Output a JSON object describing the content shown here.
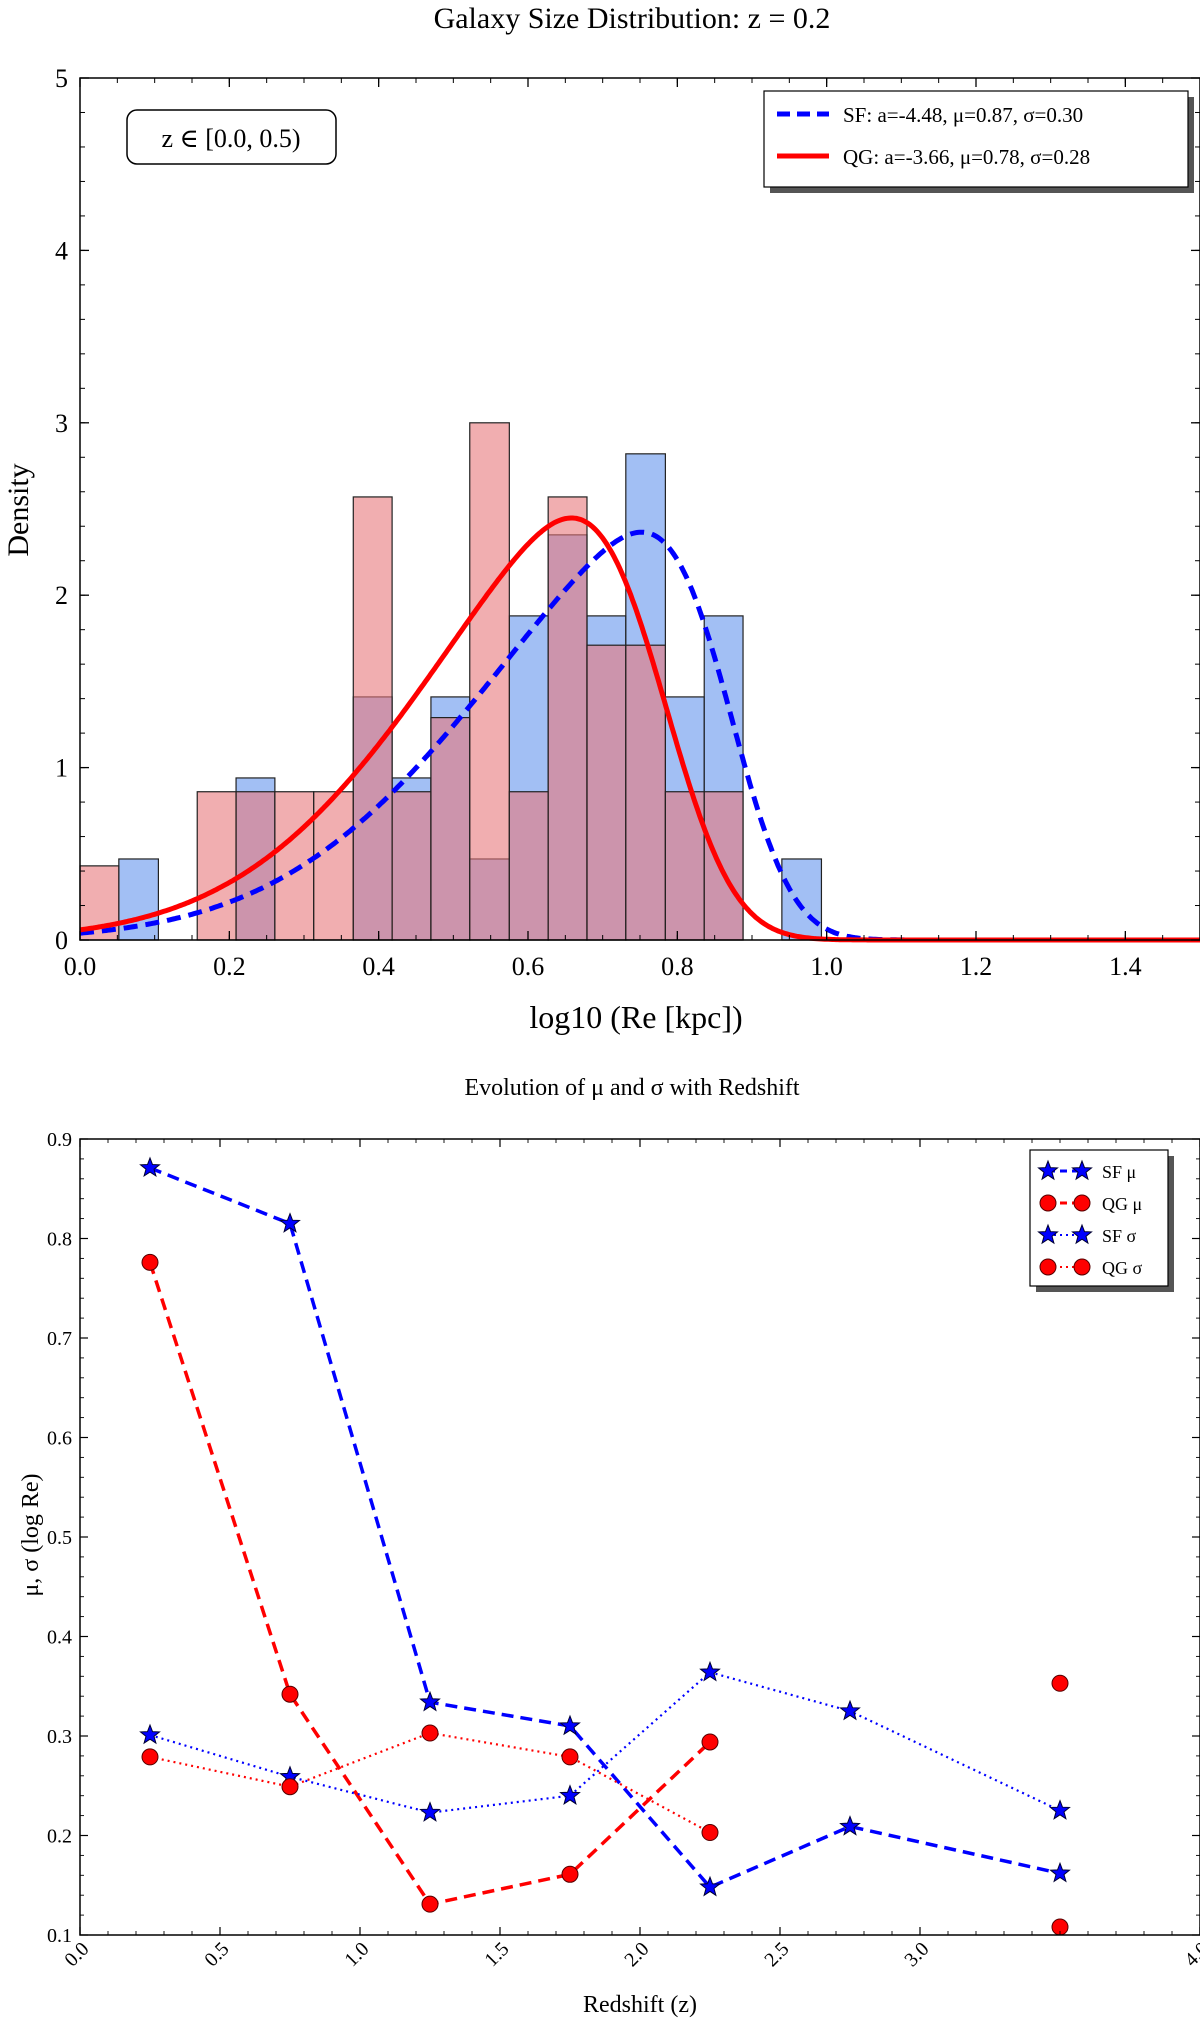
{
  "chart_data": [
    {
      "type": "bar",
      "subtype": "histogram-with-fits",
      "title": "Galaxy Size Distribution: z = 0.2",
      "xlabel": "log10 (Re [kpc])",
      "ylabel": "Density",
      "xlim": [
        0.0,
        1.5
      ],
      "ylim": [
        0,
        5
      ],
      "xticks": [
        "0.0",
        "0.2",
        "0.4",
        "0.6",
        "0.8",
        "1.0",
        "1.2",
        "1.4"
      ],
      "yticks": [
        "0",
        "1",
        "2",
        "3",
        "4",
        "5"
      ],
      "annotation": "z ∈ [0.0, 0.5)",
      "legend_position": "top-right",
      "histograms": [
        {
          "name": "SF histogram",
          "color": "#6495ED",
          "bins": [
            {
              "x0": 0.052,
              "x1": 0.105,
              "value": 0.47
            },
            {
              "x0": 0.209,
              "x1": 0.261,
              "value": 0.94
            },
            {
              "x0": 0.366,
              "x1": 0.418,
              "value": 1.41
            },
            {
              "x0": 0.418,
              "x1": 0.47,
              "value": 0.94
            },
            {
              "x0": 0.47,
              "x1": 0.522,
              "value": 1.41
            },
            {
              "x0": 0.522,
              "x1": 0.575,
              "value": 0.47
            },
            {
              "x0": 0.575,
              "x1": 0.627,
              "value": 1.88
            },
            {
              "x0": 0.627,
              "x1": 0.679,
              "value": 2.35
            },
            {
              "x0": 0.679,
              "x1": 0.731,
              "value": 1.88
            },
            {
              "x0": 0.731,
              "x1": 0.784,
              "value": 2.82
            },
            {
              "x0": 0.784,
              "x1": 0.836,
              "value": 1.41
            },
            {
              "x0": 0.836,
              "x1": 0.888,
              "value": 1.88
            },
            {
              "x0": 0.94,
              "x1": 0.993,
              "value": 0.47
            }
          ]
        },
        {
          "name": "QG histogram",
          "color": "#E8787C",
          "bins": [
            {
              "x0": 0.0,
              "x1": 0.052,
              "value": 0.43
            },
            {
              "x0": 0.157,
              "x1": 0.209,
              "value": 0.86
            },
            {
              "x0": 0.209,
              "x1": 0.261,
              "value": 0.86
            },
            {
              "x0": 0.261,
              "x1": 0.313,
              "value": 0.86
            },
            {
              "x0": 0.313,
              "x1": 0.366,
              "value": 0.86
            },
            {
              "x0": 0.366,
              "x1": 0.418,
              "value": 2.57
            },
            {
              "x0": 0.418,
              "x1": 0.47,
              "value": 0.86
            },
            {
              "x0": 0.47,
              "x1": 0.522,
              "value": 1.29
            },
            {
              "x0": 0.522,
              "x1": 0.575,
              "value": 3.0
            },
            {
              "x0": 0.575,
              "x1": 0.627,
              "value": 0.86
            },
            {
              "x0": 0.627,
              "x1": 0.679,
              "value": 2.57
            },
            {
              "x0": 0.679,
              "x1": 0.731,
              "value": 1.71
            },
            {
              "x0": 0.731,
              "x1": 0.784,
              "value": 1.71
            },
            {
              "x0": 0.784,
              "x1": 0.836,
              "value": 0.86
            },
            {
              "x0": 0.836,
              "x1": 0.888,
              "value": 0.86
            }
          ]
        }
      ],
      "fits": [
        {
          "name": "SF",
          "label": "SF: a=-4.48, μ=0.87, σ=0.30",
          "a": -4.48,
          "mu": 0.87,
          "sigma": 0.3,
          "color": "#0000FF",
          "style": "dashed"
        },
        {
          "name": "QG",
          "label": "QG: a=-3.66, μ=0.78, σ=0.28",
          "a": -3.66,
          "mu": 0.78,
          "sigma": 0.28,
          "color": "#FF0000",
          "style": "solid"
        }
      ]
    },
    {
      "type": "line",
      "title": "Evolution of μ and σ with Redshift",
      "xlabel": "Redshift (z)",
      "ylabel": "μ, σ (log Re)",
      "xlim": [
        0.0,
        4.0
      ],
      "ylim": [
        0.1,
        0.9
      ],
      "xticks": [
        "0.0",
        "0.5",
        "1.0",
        "1.5",
        "2.0",
        "2.5",
        "3.0",
        "4.0"
      ],
      "xtick_values": [
        0.0,
        0.5,
        1.0,
        1.5,
        2.0,
        2.5,
        3.0,
        4.0
      ],
      "yticks": [
        "0.1",
        "0.2",
        "0.3",
        "0.4",
        "0.5",
        "0.6",
        "0.7",
        "0.8",
        "0.9"
      ],
      "legend_position": "top-right",
      "series": [
        {
          "name": "SF μ",
          "color": "#0000FF",
          "marker": "star",
          "style": "dashed",
          "x": [
            0.25,
            0.75,
            1.25,
            1.75,
            2.25,
            2.75,
            3.5
          ],
          "y": [
            0.871,
            0.815,
            0.334,
            0.31,
            0.148,
            0.209,
            0.162
          ]
        },
        {
          "name": "QG μ",
          "color": "#FF0000",
          "marker": "circle",
          "style": "dashed",
          "x": [
            0.25,
            0.75,
            1.25,
            1.75,
            2.25,
            3.5
          ],
          "y": [
            0.776,
            0.342,
            0.131,
            0.161,
            0.294,
            0.108
          ]
        },
        {
          "name": "SF σ",
          "color": "#0000FF",
          "marker": "star",
          "style": "dotted",
          "x": [
            0.25,
            0.75,
            1.25,
            1.75,
            2.25,
            2.75,
            3.5
          ],
          "y": [
            0.301,
            0.259,
            0.223,
            0.24,
            0.364,
            0.325,
            0.225
          ]
        },
        {
          "name": "QG σ",
          "color": "#FF0000",
          "marker": "circle",
          "style": "dotted",
          "x": [
            0.25,
            0.75,
            1.25,
            1.75,
            2.25,
            3.5
          ],
          "y": [
            0.279,
            0.249,
            0.303,
            0.279,
            0.203,
            0.353
          ]
        }
      ]
    }
  ]
}
